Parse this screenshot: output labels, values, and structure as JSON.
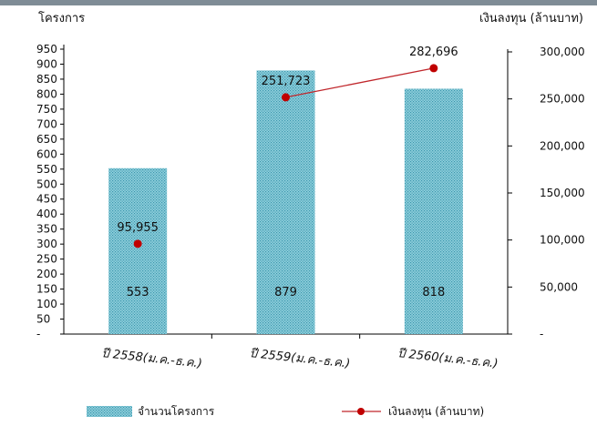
{
  "chart_data": {
    "type": "bar",
    "categories": [
      "ปี 2558(ม.ค.-ธ.ค.)",
      "ปี 2559(ม.ค.-ธ.ค.)",
      "ปี 2560(ม.ค.-ธ.ค.)"
    ],
    "series": [
      {
        "name": "จำนวนโครงการ",
        "type": "bar",
        "axis": "left",
        "values": [
          553,
          879,
          818
        ],
        "labels": [
          "553",
          "879",
          "818"
        ]
      },
      {
        "name": "เงินลงทุน (ล้านบาท)",
        "type": "line",
        "axis": "right",
        "values": [
          95955,
          251723,
          282696
        ],
        "labels": [
          "95,955",
          "251,723",
          "282,696"
        ]
      }
    ],
    "ylabel": "โครงการ",
    "y2label": "เงินลงทุน (ล้านบาท)",
    "ylim": [
      0,
      950
    ],
    "y2lim": [
      0,
      300000
    ],
    "yticks": [
      "-",
      "50",
      "100",
      "150",
      "200",
      "250",
      "300",
      "350",
      "400",
      "450",
      "500",
      "550",
      "600",
      "650",
      "700",
      "750",
      "800",
      "850",
      "900",
      "950"
    ],
    "y2ticks": [
      "-",
      "50,000",
      "100,000",
      "150,000",
      "200,000",
      "250,000",
      "300,000"
    ],
    "legend_position": "bottom",
    "colors": {
      "bar": "#8fd0dc",
      "bar_pattern": "#3b95ad",
      "line": "#c0262b",
      "marker": "#c00000"
    }
  }
}
